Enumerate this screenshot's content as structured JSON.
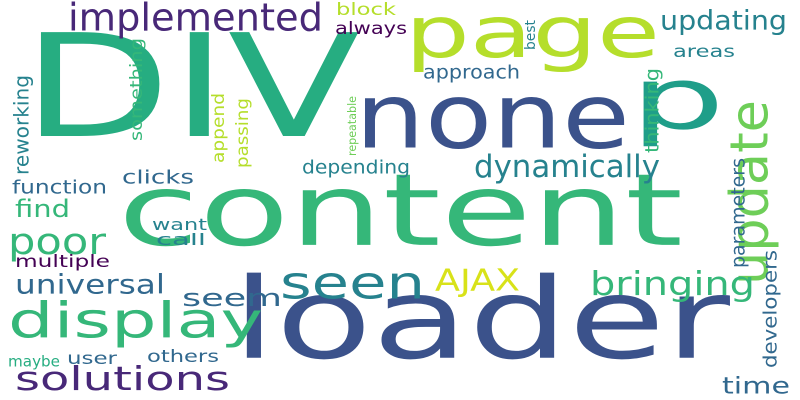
{
  "colors": {
    "background": "#ffffff",
    "dark_purple": "#440154",
    "indigo": "#3b528b",
    "steel_blue": "#31688e",
    "blue_teal": "#26828e",
    "teal": "#1f9e89",
    "green_teal": "#26ad81",
    "green": "#35b779",
    "light_green": "#6ece58",
    "lime": "#b5de2b",
    "yellow": "#d8e219"
  },
  "words": [
    {
      "text": "content",
      "color": "#35b779",
      "rotated": false
    },
    {
      "text": "loader",
      "color": "#3b528b",
      "rotated": false
    },
    {
      "text": "DIV",
      "color": "#26ad81",
      "rotated": false
    },
    {
      "text": "page",
      "color": "#b5de2b",
      "rotated": false
    },
    {
      "text": "none",
      "color": "#3b528b",
      "rotated": false
    },
    {
      "text": "p",
      "color": "#1f9e89",
      "rotated": false
    },
    {
      "text": "update",
      "color": "#6ece58",
      "rotated": true
    },
    {
      "text": "display",
      "color": "#35b779",
      "rotated": false
    },
    {
      "text": "seen",
      "color": "#26828e",
      "rotated": false
    },
    {
      "text": "implemented",
      "color": "#482878",
      "rotated": false
    },
    {
      "text": "solutions",
      "color": "#482878",
      "rotated": false
    },
    {
      "text": "poor",
      "color": "#35b779",
      "rotated": false
    },
    {
      "text": "AJAX",
      "color": "#d8e219",
      "rotated": false
    },
    {
      "text": "bringing",
      "color": "#35b779",
      "rotated": false
    },
    {
      "text": "dynamically",
      "color": "#26828e",
      "rotated": false
    },
    {
      "text": "updating",
      "color": "#26828e",
      "rotated": false
    },
    {
      "text": "reworking",
      "color": "#26828e",
      "rotated": true
    },
    {
      "text": "universal",
      "color": "#31688e",
      "rotated": false
    },
    {
      "text": "find",
      "color": "#35b779",
      "rotated": false
    },
    {
      "text": "seem",
      "color": "#31688e",
      "rotated": false
    },
    {
      "text": "time",
      "color": "#31688e",
      "rotated": false
    },
    {
      "text": "function",
      "color": "#31688e",
      "rotated": false
    },
    {
      "text": "clicks",
      "color": "#31688e",
      "rotated": false
    },
    {
      "text": "depending",
      "color": "#26828e",
      "rotated": false
    },
    {
      "text": "approach",
      "color": "#31688e",
      "rotated": false
    },
    {
      "text": "areas",
      "color": "#26828e",
      "rotated": false
    },
    {
      "text": "always",
      "color": "#440154",
      "rotated": false
    },
    {
      "text": "block",
      "color": "#b5de2b",
      "rotated": false
    },
    {
      "text": "best",
      "color": "#26828e",
      "rotated": true
    },
    {
      "text": "something",
      "color": "#35b779",
      "rotated": true
    },
    {
      "text": "append",
      "color": "#b5de2b",
      "rotated": true
    },
    {
      "text": "passing",
      "color": "#b5de2b",
      "rotated": true
    },
    {
      "text": "repeatable",
      "color": "#6ece58",
      "rotated": true
    },
    {
      "text": "thinking",
      "color": "#35b779",
      "rotated": true
    },
    {
      "text": "parameters",
      "color": "#31688e",
      "rotated": true
    },
    {
      "text": "developers",
      "color": "#31688e",
      "rotated": true
    },
    {
      "text": "want",
      "color": "#26828e",
      "rotated": false
    },
    {
      "text": "call",
      "color": "#26828e",
      "rotated": false
    },
    {
      "text": "multiple",
      "color": "#440154",
      "rotated": false
    },
    {
      "text": "user",
      "color": "#31688e",
      "rotated": false
    },
    {
      "text": "others",
      "color": "#31688e",
      "rotated": false
    },
    {
      "text": "maybe",
      "color": "#26ad81",
      "rotated": false
    }
  ]
}
